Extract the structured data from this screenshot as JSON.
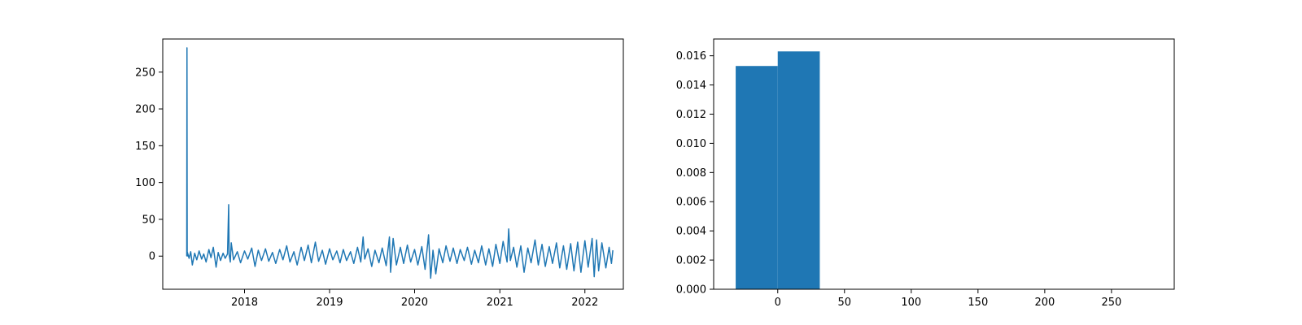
{
  "chart_data": [
    {
      "type": "line",
      "title": "",
      "xlabel": "",
      "ylabel": "",
      "color": "#1f77b4",
      "xlim": [
        "2017-01-15",
        "2022-06-15"
      ],
      "ylim": [
        -45,
        295
      ],
      "x_ticks": [
        {
          "value": "2018-01-01",
          "label": "2018"
        },
        {
          "value": "2019-01-01",
          "label": "2019"
        },
        {
          "value": "2020-01-01",
          "label": "2020"
        },
        {
          "value": "2021-01-01",
          "label": "2021"
        },
        {
          "value": "2022-01-01",
          "label": "2022"
        }
      ],
      "y_ticks": [
        {
          "value": 0,
          "label": "0"
        },
        {
          "value": 50,
          "label": "50"
        },
        {
          "value": 100,
          "label": "100"
        },
        {
          "value": 150,
          "label": "150"
        },
        {
          "value": 200,
          "label": "200"
        },
        {
          "value": 250,
          "label": "250"
        }
      ],
      "points": [
        [
          "2017-04-28",
          0
        ],
        [
          "2017-04-29",
          283
        ],
        [
          "2017-04-30",
          0
        ],
        [
          "2017-05-01",
          5
        ],
        [
          "2017-05-08",
          -3
        ],
        [
          "2017-05-15",
          6
        ],
        [
          "2017-05-22",
          -12
        ],
        [
          "2017-06-01",
          4
        ],
        [
          "2017-06-10",
          -5
        ],
        [
          "2017-06-20",
          7
        ],
        [
          "2017-07-01",
          -4
        ],
        [
          "2017-07-10",
          3
        ],
        [
          "2017-07-20",
          -8
        ],
        [
          "2017-08-01",
          9
        ],
        [
          "2017-08-10",
          -2
        ],
        [
          "2017-08-20",
          12
        ],
        [
          "2017-09-01",
          -15
        ],
        [
          "2017-09-10",
          5
        ],
        [
          "2017-09-20",
          -6
        ],
        [
          "2017-10-01",
          4
        ],
        [
          "2017-10-10",
          -3
        ],
        [
          "2017-10-20",
          3
        ],
        [
          "2017-10-25",
          70
        ],
        [
          "2017-10-27",
          2
        ],
        [
          "2017-11-01",
          -8
        ],
        [
          "2017-11-05",
          18
        ],
        [
          "2017-11-15",
          -5
        ],
        [
          "2017-12-01",
          6
        ],
        [
          "2017-12-15",
          -9
        ],
        [
          "2018-01-01",
          7
        ],
        [
          "2018-01-15",
          -4
        ],
        [
          "2018-02-01",
          11
        ],
        [
          "2018-02-15",
          -14
        ],
        [
          "2018-03-01",
          8
        ],
        [
          "2018-03-15",
          -6
        ],
        [
          "2018-04-01",
          10
        ],
        [
          "2018-04-15",
          -7
        ],
        [
          "2018-05-01",
          5
        ],
        [
          "2018-05-15",
          -10
        ],
        [
          "2018-06-01",
          9
        ],
        [
          "2018-06-15",
          -5
        ],
        [
          "2018-07-01",
          14
        ],
        [
          "2018-07-15",
          -8
        ],
        [
          "2018-08-01",
          6
        ],
        [
          "2018-08-15",
          -12
        ],
        [
          "2018-09-01",
          12
        ],
        [
          "2018-09-15",
          -6
        ],
        [
          "2018-10-01",
          15
        ],
        [
          "2018-10-15",
          -9
        ],
        [
          "2018-11-01",
          19
        ],
        [
          "2018-11-15",
          -7
        ],
        [
          "2018-12-01",
          8
        ],
        [
          "2018-12-15",
          -11
        ],
        [
          "2019-01-01",
          10
        ],
        [
          "2019-01-15",
          -5
        ],
        [
          "2019-02-01",
          7
        ],
        [
          "2019-02-15",
          -9
        ],
        [
          "2019-03-01",
          9
        ],
        [
          "2019-03-15",
          -6
        ],
        [
          "2019-04-01",
          6
        ],
        [
          "2019-04-15",
          -10
        ],
        [
          "2019-05-01",
          12
        ],
        [
          "2019-05-15",
          -8
        ],
        [
          "2019-05-25",
          26
        ],
        [
          "2019-06-01",
          -4
        ],
        [
          "2019-06-15",
          10
        ],
        [
          "2019-07-01",
          -14
        ],
        [
          "2019-07-15",
          8
        ],
        [
          "2019-08-01",
          -9
        ],
        [
          "2019-08-15",
          11
        ],
        [
          "2019-09-01",
          -13
        ],
        [
          "2019-09-15",
          26
        ],
        [
          "2019-09-20",
          -22
        ],
        [
          "2019-10-01",
          24
        ],
        [
          "2019-10-15",
          -12
        ],
        [
          "2019-11-01",
          12
        ],
        [
          "2019-11-15",
          -10
        ],
        [
          "2019-12-01",
          15
        ],
        [
          "2019-12-15",
          -8
        ],
        [
          "2020-01-01",
          9
        ],
        [
          "2020-01-15",
          -12
        ],
        [
          "2020-02-01",
          13
        ],
        [
          "2020-02-15",
          -18
        ],
        [
          "2020-03-01",
          29
        ],
        [
          "2020-03-10",
          -30
        ],
        [
          "2020-03-20",
          8
        ],
        [
          "2020-04-01",
          -24
        ],
        [
          "2020-04-15",
          10
        ],
        [
          "2020-05-01",
          -9
        ],
        [
          "2020-05-15",
          14
        ],
        [
          "2020-06-01",
          -7
        ],
        [
          "2020-06-15",
          11
        ],
        [
          "2020-07-01",
          -10
        ],
        [
          "2020-07-15",
          9
        ],
        [
          "2020-08-01",
          -6
        ],
        [
          "2020-08-15",
          12
        ],
        [
          "2020-09-01",
          -11
        ],
        [
          "2020-09-15",
          8
        ],
        [
          "2020-10-01",
          -9
        ],
        [
          "2020-10-15",
          14
        ],
        [
          "2020-11-01",
          -12
        ],
        [
          "2020-11-15",
          10
        ],
        [
          "2020-12-01",
          -14
        ],
        [
          "2020-12-15",
          16
        ],
        [
          "2021-01-01",
          -10
        ],
        [
          "2021-01-15",
          20
        ],
        [
          "2021-02-01",
          -8
        ],
        [
          "2021-02-08",
          37
        ],
        [
          "2021-02-15",
          -6
        ],
        [
          "2021-03-01",
          12
        ],
        [
          "2021-03-15",
          -15
        ],
        [
          "2021-04-01",
          14
        ],
        [
          "2021-04-15",
          -22
        ],
        [
          "2021-05-01",
          11
        ],
        [
          "2021-05-15",
          -9
        ],
        [
          "2021-06-01",
          22
        ],
        [
          "2021-06-15",
          -12
        ],
        [
          "2021-07-01",
          16
        ],
        [
          "2021-07-15",
          -14
        ],
        [
          "2021-08-01",
          13
        ],
        [
          "2021-08-15",
          -10
        ],
        [
          "2021-09-01",
          18
        ],
        [
          "2021-09-15",
          -16
        ],
        [
          "2021-10-01",
          14
        ],
        [
          "2021-10-15",
          -18
        ],
        [
          "2021-11-01",
          17
        ],
        [
          "2021-11-15",
          -20
        ],
        [
          "2021-12-01",
          19
        ],
        [
          "2021-12-15",
          -22
        ],
        [
          "2022-01-01",
          21
        ],
        [
          "2022-01-15",
          -15
        ],
        [
          "2022-02-01",
          24
        ],
        [
          "2022-02-10",
          -28
        ],
        [
          "2022-02-20",
          22
        ],
        [
          "2022-03-01",
          -20
        ],
        [
          "2022-03-15",
          18
        ],
        [
          "2022-04-01",
          -16
        ],
        [
          "2022-04-15",
          12
        ],
        [
          "2022-04-25",
          -10
        ],
        [
          "2022-05-01",
          8
        ]
      ]
    },
    {
      "type": "bar",
      "title": "",
      "xlabel": "",
      "ylabel": "",
      "color": "#1f77b4",
      "xlim": [
        -48,
        297
      ],
      "ylim": [
        0,
        0.01715
      ],
      "x_ticks": [
        {
          "value": 0,
          "label": "0"
        },
        {
          "value": 50,
          "label": "50"
        },
        {
          "value": 100,
          "label": "100"
        },
        {
          "value": 150,
          "label": "150"
        },
        {
          "value": 200,
          "label": "200"
        },
        {
          "value": 250,
          "label": "250"
        }
      ],
      "y_ticks": [
        {
          "value": 0,
          "label": "0.000"
        },
        {
          "value": 0.002,
          "label": "0.002"
        },
        {
          "value": 0.004,
          "label": "0.004"
        },
        {
          "value": 0.006,
          "label": "0.006"
        },
        {
          "value": 0.008,
          "label": "0.008"
        },
        {
          "value": 0.01,
          "label": "0.010"
        },
        {
          "value": 0.012,
          "label": "0.012"
        },
        {
          "value": 0.014,
          "label": "0.014"
        },
        {
          "value": 0.016,
          "label": "0.016"
        }
      ],
      "bins": [
        {
          "start": -31.5,
          "end": 0,
          "value": 0.0153
        },
        {
          "start": 0,
          "end": 31.5,
          "value": 0.0163
        }
      ]
    }
  ]
}
